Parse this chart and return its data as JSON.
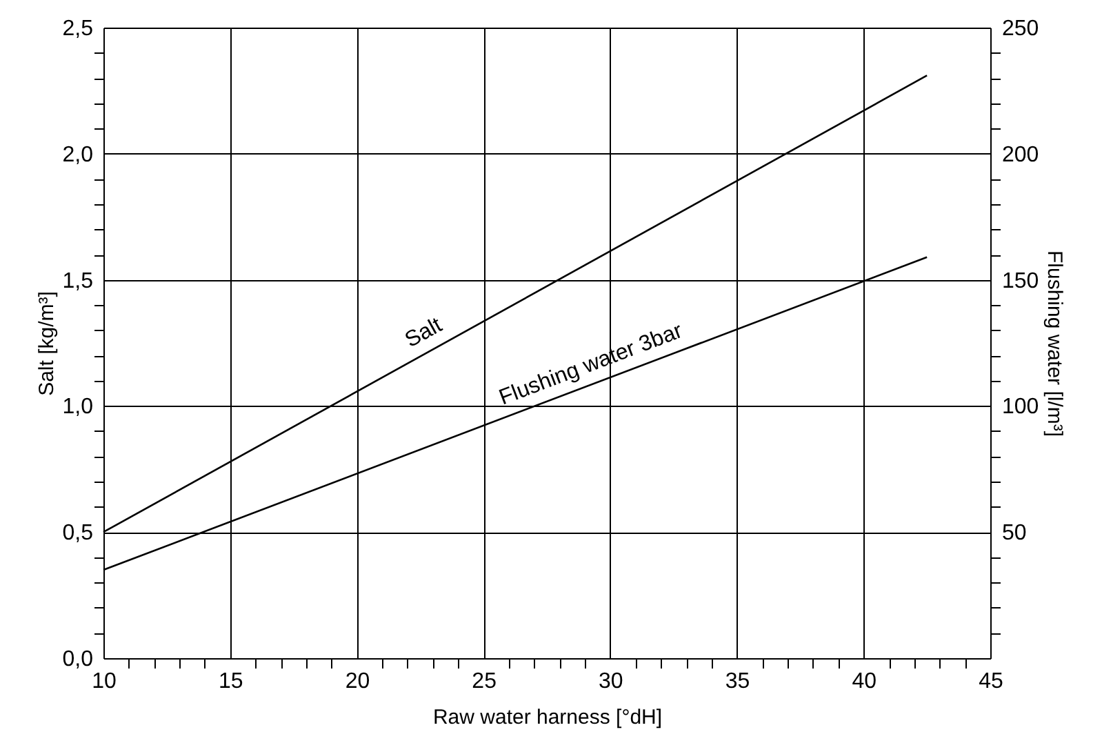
{
  "chart_data": {
    "type": "line",
    "xlabel": "Raw water harness [°dH]",
    "ylabel": "Salt [kg/m³]",
    "y2label": "Flushing water [l/m³]",
    "x": [
      10,
      42.5
    ],
    "series": [
      {
        "name": "Salt",
        "color": "#000000",
        "values": [
          0.5,
          2.31
        ]
      },
      {
        "name": "Flushing water 3bar",
        "color": "#000000",
        "axis": "y2",
        "values": [
          35,
          159
        ]
      }
    ],
    "xlim": [
      10,
      45
    ],
    "ylim": [
      0,
      2.5
    ],
    "y2lim": [
      0,
      250
    ],
    "xticks": [
      10,
      {
        "value": 11,
        "label": null
      },
      {
        "value": 12,
        "label": null
      },
      {
        "value": 13,
        "label": null
      },
      {
        "value": 14,
        "label": null
      },
      15,
      {
        "value": 16,
        "label": null
      },
      {
        "value": 17,
        "label": null
      },
      {
        "value": 18,
        "label": null
      },
      {
        "value": 19,
        "label": null
      },
      20,
      {
        "value": 21,
        "label": null
      },
      {
        "value": 22,
        "label": null
      },
      {
        "value": 23,
        "label": null
      },
      {
        "value": 24,
        "label": null
      },
      25,
      {
        "value": 26,
        "label": null
      },
      {
        "value": 27,
        "label": null
      },
      {
        "value": 28,
        "label": null
      },
      {
        "value": 29,
        "label": null
      },
      30,
      {
        "value": 31,
        "label": null
      },
      {
        "value": 32,
        "label": null
      },
      {
        "value": 33,
        "label": null
      },
      {
        "value": 34,
        "label": null
      },
      35,
      {
        "value": 36,
        "label": null
      },
      {
        "value": 37,
        "label": null
      },
      {
        "value": 38,
        "label": null
      },
      {
        "value": 39,
        "label": null
      },
      40,
      {
        "value": 41,
        "label": null
      },
      {
        "value": 42,
        "label": null
      },
      {
        "value": 43,
        "label": null
      },
      {
        "value": 44,
        "label": null
      },
      45
    ],
    "yticks": [
      {
        "value": 0,
        "label": "0,0"
      },
      {
        "value": 0.1,
        "label": null
      },
      {
        "value": 0.2,
        "label": null
      },
      {
        "value": 0.3,
        "label": null
      },
      {
        "value": 0.4,
        "label": null
      },
      {
        "value": 0.5,
        "label": "0,5"
      },
      {
        "value": 0.6,
        "label": null
      },
      {
        "value": 0.7,
        "label": null
      },
      {
        "value": 0.8,
        "label": null
      },
      {
        "value": 0.9,
        "label": null
      },
      {
        "value": 1.0,
        "label": "1,0"
      },
      {
        "value": 1.1,
        "label": null
      },
      {
        "value": 1.2,
        "label": null
      },
      {
        "value": 1.3,
        "label": null
      },
      {
        "value": 1.4,
        "label": null
      },
      {
        "value": 1.5,
        "label": "1,5"
      },
      {
        "value": 1.6,
        "label": null
      },
      {
        "value": 1.7,
        "label": null
      },
      {
        "value": 1.8,
        "label": null
      },
      {
        "value": 1.9,
        "label": null
      },
      {
        "value": 2.0,
        "label": "2,0"
      },
      {
        "value": 2.1,
        "label": null
      },
      {
        "value": 2.2,
        "label": null
      },
      {
        "value": 2.3,
        "label": null
      },
      {
        "value": 2.4,
        "label": null
      },
      {
        "value": 2.5,
        "label": "2,5"
      }
    ],
    "y2ticks": [
      {
        "value": 10,
        "label": null
      },
      {
        "value": 20,
        "label": null
      },
      {
        "value": 30,
        "label": null
      },
      {
        "value": 40,
        "label": null
      },
      50,
      {
        "value": 60,
        "label": null
      },
      {
        "value": 70,
        "label": null
      },
      {
        "value": 80,
        "label": null
      },
      {
        "value": 90,
        "label": null
      },
      100,
      {
        "value": 110,
        "label": null
      },
      {
        "value": 120,
        "label": null
      },
      {
        "value": 130,
        "label": null
      },
      {
        "value": 140,
        "label": null
      },
      150,
      {
        "value": 160,
        "label": null
      },
      {
        "value": 170,
        "label": null
      },
      {
        "value": 180,
        "label": null
      },
      {
        "value": 190,
        "label": null
      },
      200,
      {
        "value": 210,
        "label": null
      },
      {
        "value": 220,
        "label": null
      },
      {
        "value": 230,
        "label": null
      },
      {
        "value": 240,
        "label": null
      },
      250
    ],
    "grid": true,
    "line_style": "solid",
    "marker": "none"
  }
}
